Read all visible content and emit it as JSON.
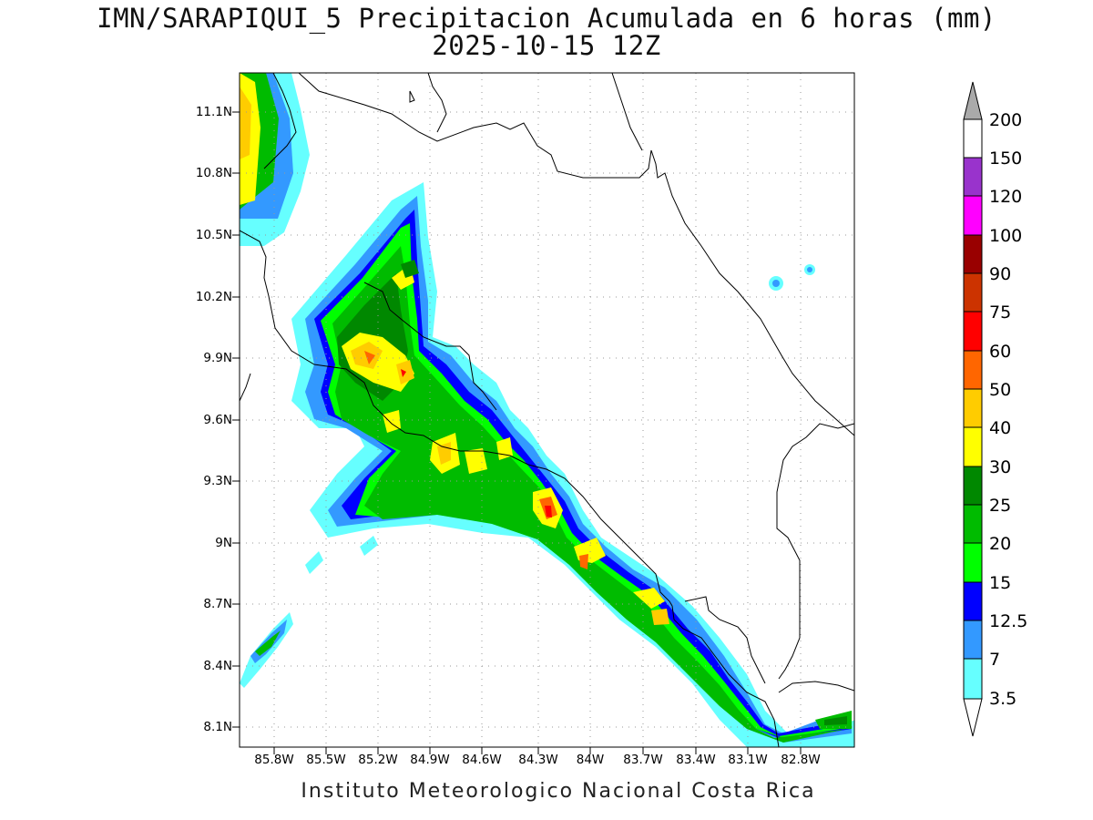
{
  "title": {
    "line1": "IMN/SARAPIQUI_5 Precipitacion Acumulada en 6 horas (mm)",
    "line2": "2025-10-15 12Z"
  },
  "footer": "Instituto Meteorologico Nacional Costa Rica",
  "map": {
    "region": "Costa Rica",
    "lat_ticks": [
      "11.1N",
      "10.8N",
      "10.5N",
      "10.2N",
      "9.9N",
      "9.6N",
      "9.3N",
      "9N",
      "8.7N",
      "8.4N",
      "8.1N"
    ],
    "lon_ticks": [
      "85.8W",
      "85.5W",
      "85.2W",
      "84.9W",
      "84.6W",
      "84.3W",
      "84W",
      "83.7W",
      "83.4W",
      "83.1W",
      "82.8W"
    ],
    "grid": "dotted",
    "field": "accumulated precipitation 6 h"
  },
  "colorbar": {
    "levels": [
      "200",
      "150",
      "120",
      "100",
      "90",
      "75",
      "60",
      "50",
      "40",
      "30",
      "25",
      "20",
      "15",
      "12.5",
      "7",
      "3.5"
    ],
    "colors": [
      "#ffffff",
      "#f5f5f5",
      "#9933cc",
      "#ff00ff",
      "#990000",
      "#cc3300",
      "#ff0000",
      "#ff6600",
      "#ffcc00",
      "#ffff00",
      "#008800",
      "#00bb00",
      "#00ff00",
      "#0000ff",
      "#3399ff",
      "#66ffff"
    ],
    "over_color": "#aaaaaa"
  }
}
